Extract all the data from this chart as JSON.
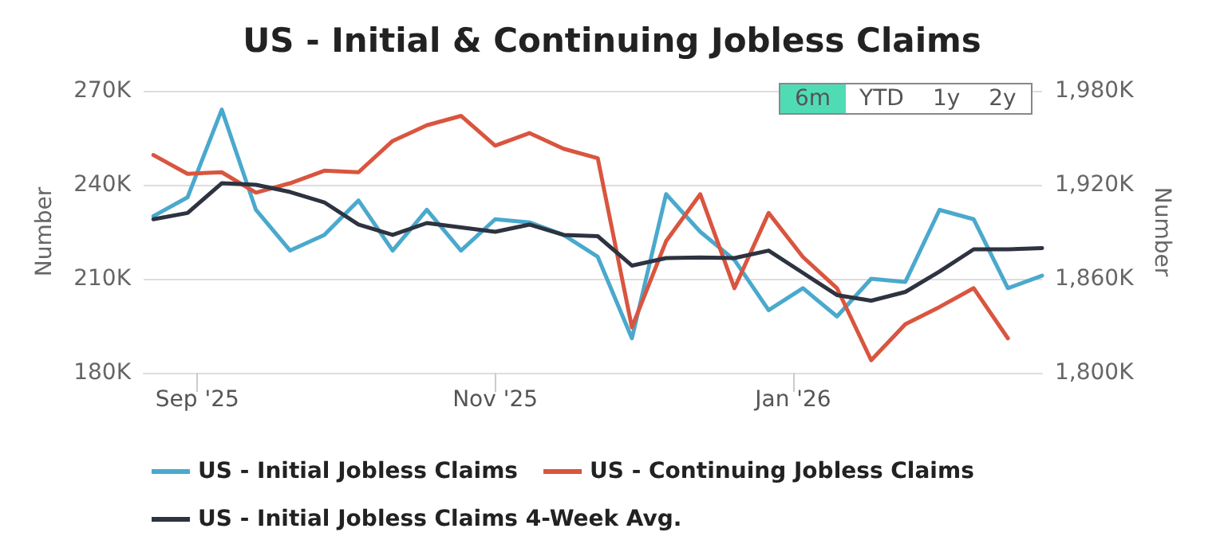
{
  "chart_data": {
    "type": "line",
    "title": "US - Initial & Continuing Jobless Claims",
    "x": [
      "2025-08-23",
      "2025-08-30",
      "2025-09-06",
      "2025-09-13",
      "2025-09-20",
      "2025-09-27",
      "2025-10-04",
      "2025-10-11",
      "2025-10-18",
      "2025-10-25",
      "2025-11-01",
      "2025-11-08",
      "2025-11-15",
      "2025-11-22",
      "2025-11-29",
      "2025-12-06",
      "2025-12-13",
      "2025-12-20",
      "2025-12-27",
      "2026-01-03",
      "2026-01-10",
      "2026-01-17",
      "2026-01-24",
      "2026-01-31",
      "2026-02-07",
      "2026-02-14",
      "2026-02-21"
    ],
    "series": [
      {
        "name": "US - Initial Jobless Claims",
        "color": "#4aa9cc",
        "values": [
          230,
          236,
          264,
          232,
          219,
          224,
          235,
          219,
          232,
          219,
          229,
          228,
          224,
          217,
          191,
          237,
          225,
          216,
          200,
          207,
          198,
          210,
          209,
          232,
          229,
          207,
          211
        ]
      },
      {
        "name": "US - Continuing Jobless Claims",
        "color": "#d9553f",
        "axis": "y2",
        "values": [
          1939,
          1927,
          1928,
          1915,
          1921,
          1929,
          1928,
          1948,
          1958,
          1964,
          1945,
          1953,
          1943,
          1937,
          1829,
          1884,
          1914,
          1854,
          1902,
          1874,
          1854,
          1808,
          1831,
          1842,
          1854,
          1822,
          null
        ]
      },
      {
        "name": "US - Initial Jobless Claims 4-Week Avg.",
        "color": "#2d3340",
        "values": [
          229,
          231,
          240.5,
          240,
          237.7,
          234.4,
          227.3,
          224,
          227.8,
          226.4,
          225,
          227.3,
          224,
          223.6,
          214.2,
          216.6,
          216.8,
          216.6,
          219,
          211.9,
          204.8,
          203,
          205.8,
          212.3,
          219.4,
          219.4,
          219.8
        ]
      }
    ],
    "ylabel": "Number",
    "y2label": "Number",
    "xlim": [
      "2025-08-21",
      "2026-02-21"
    ],
    "xticks": [
      {
        "value": "2025-09-01",
        "label": "Sep '25"
      },
      {
        "value": "2025-11-01",
        "label": "Nov '25"
      },
      {
        "value": "2026-01-01",
        "label": "Jan '26"
      }
    ],
    "ylim": [
      180,
      270
    ],
    "yticks": [
      {
        "value": 180,
        "label": "180K"
      },
      {
        "value": 210,
        "label": "210K"
      },
      {
        "value": 240,
        "label": "240K"
      },
      {
        "value": 270,
        "label": "270K"
      }
    ],
    "y2lim": [
      1800,
      1980
    ],
    "y2ticks": [
      {
        "value": 1800,
        "label": "1,800K"
      },
      {
        "value": 1860,
        "label": "1,860K"
      },
      {
        "value": 1920,
        "label": "1,920K"
      },
      {
        "value": 1980,
        "label": "1,980K"
      }
    ],
    "grid": "y",
    "legend": "bottom",
    "marker": "none",
    "line_style": "solid",
    "annotations": [
      "6m",
      "YTD",
      "1y",
      "2y"
    ]
  }
}
